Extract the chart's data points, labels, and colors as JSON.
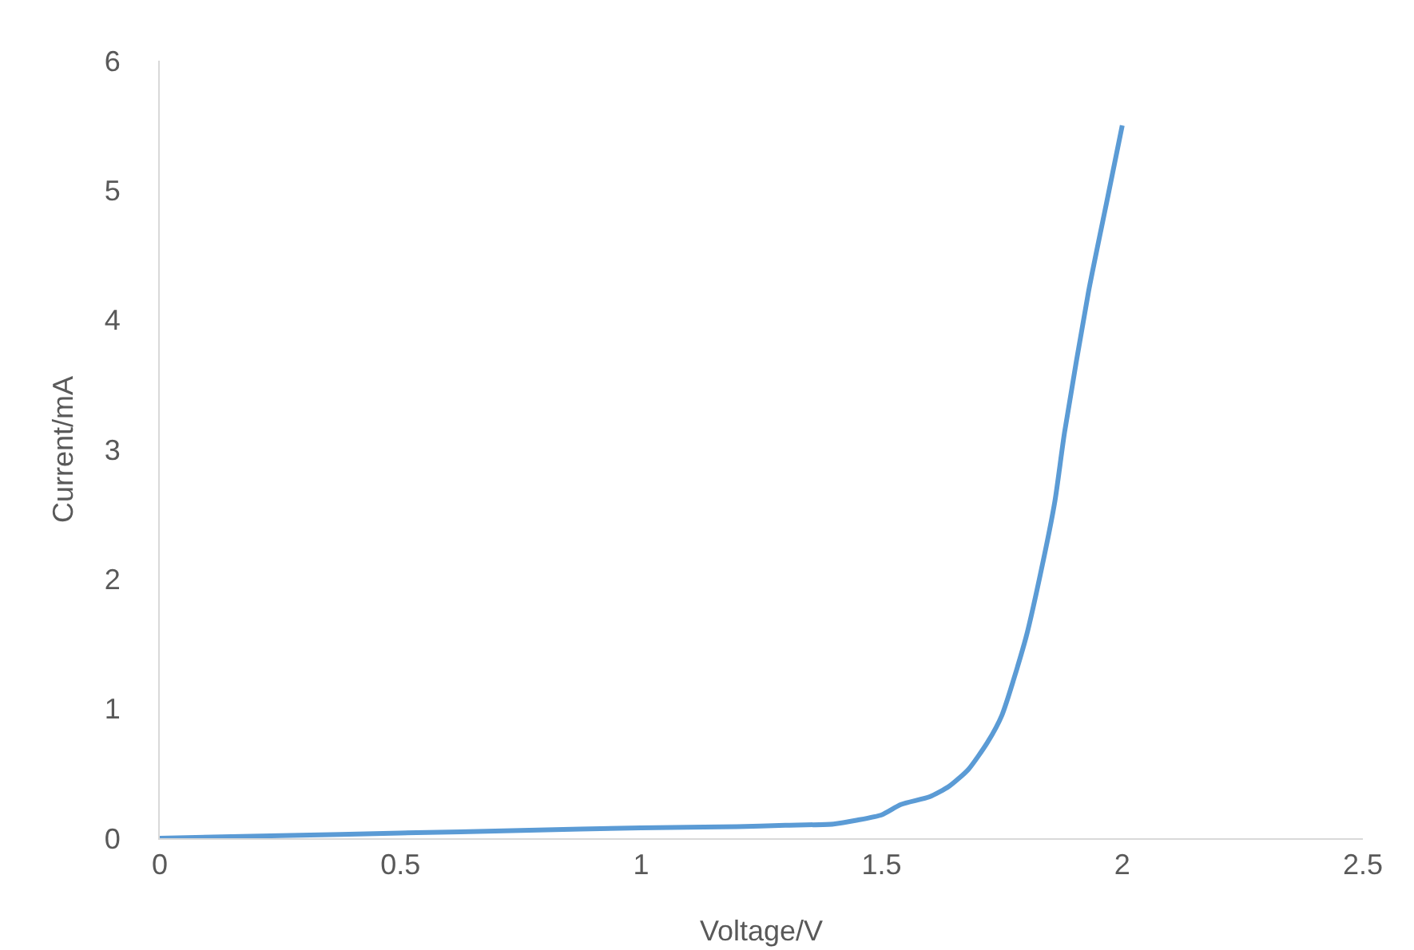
{
  "chart_data": {
    "type": "line",
    "xlabel": "Voltage/V",
    "ylabel": "Current/mA",
    "xlim": [
      0,
      2.5
    ],
    "xticks": [
      0,
      0.5,
      1,
      1.5,
      2,
      2.5
    ],
    "ylim": [
      0,
      6
    ],
    "yticks": [
      0,
      1,
      2,
      3,
      4,
      5,
      6
    ],
    "grid": false,
    "marker": "none",
    "line_style": "solid",
    "series": [
      {
        "color": "#5b9bd5",
        "x": [
          0,
          0.25,
          0.5,
          0.75,
          1,
          1.2,
          1.3,
          1.4,
          1.45,
          1.5,
          1.54,
          1.6,
          1.64,
          1.68,
          1.72,
          1.75,
          1.8,
          1.83,
          1.86,
          1.88,
          1.93,
          1.97,
          2
        ],
        "values": [
          0,
          0.02,
          0.04,
          0.06,
          0.08,
          0.09,
          0.1,
          0.11,
          0.14,
          0.18,
          0.26,
          0.32,
          0.4,
          0.53,
          0.74,
          0.95,
          1.55,
          2.04,
          2.6,
          3.13,
          4.22,
          4.95,
          5.5
        ]
      }
    ]
  }
}
